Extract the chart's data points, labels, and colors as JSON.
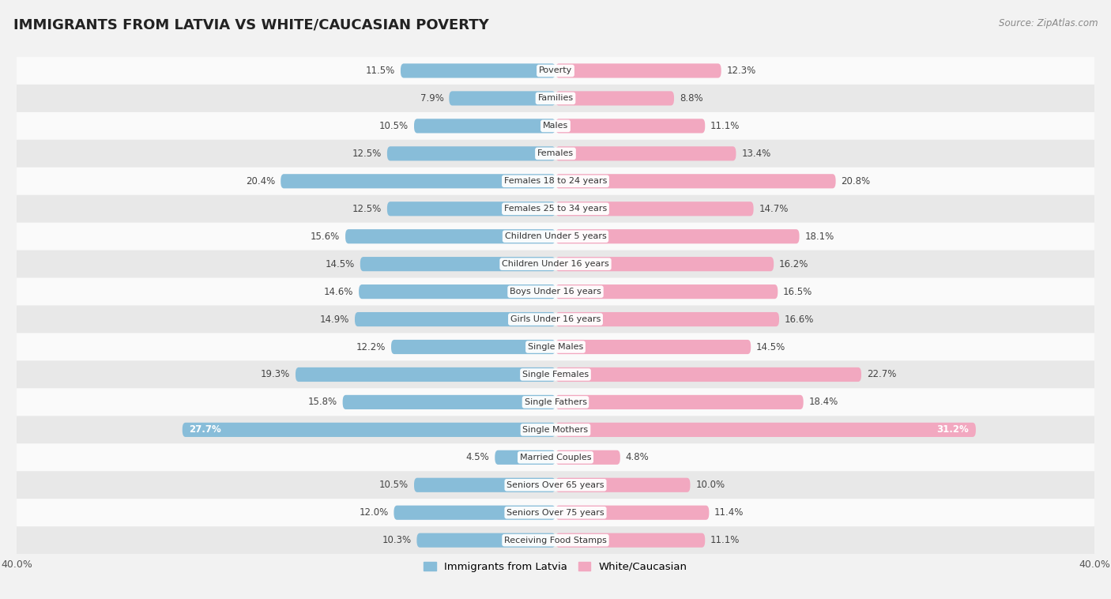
{
  "title": "IMMIGRANTS FROM LATVIA VS WHITE/CAUCASIAN POVERTY",
  "source": "Source: ZipAtlas.com",
  "categories": [
    "Poverty",
    "Families",
    "Males",
    "Females",
    "Females 18 to 24 years",
    "Females 25 to 34 years",
    "Children Under 5 years",
    "Children Under 16 years",
    "Boys Under 16 years",
    "Girls Under 16 years",
    "Single Males",
    "Single Females",
    "Single Fathers",
    "Single Mothers",
    "Married Couples",
    "Seniors Over 65 years",
    "Seniors Over 75 years",
    "Receiving Food Stamps"
  ],
  "latvia_values": [
    11.5,
    7.9,
    10.5,
    12.5,
    20.4,
    12.5,
    15.6,
    14.5,
    14.6,
    14.9,
    12.2,
    19.3,
    15.8,
    27.7,
    4.5,
    10.5,
    12.0,
    10.3
  ],
  "white_values": [
    12.3,
    8.8,
    11.1,
    13.4,
    20.8,
    14.7,
    18.1,
    16.2,
    16.5,
    16.6,
    14.5,
    22.7,
    18.4,
    31.2,
    4.8,
    10.0,
    11.4,
    11.1
  ],
  "latvia_color": "#88bdd9",
  "white_color": "#f2a8c0",
  "xlim": 40.0,
  "bar_height": 0.52,
  "bg_color": "#f2f2f2",
  "row_colors": [
    "#fafafa",
    "#e8e8e8"
  ],
  "label_fontsize": 8.0,
  "value_fontsize": 8.5,
  "title_fontsize": 13,
  "legend_labels": [
    "Immigrants from Latvia",
    "White/Caucasian"
  ]
}
